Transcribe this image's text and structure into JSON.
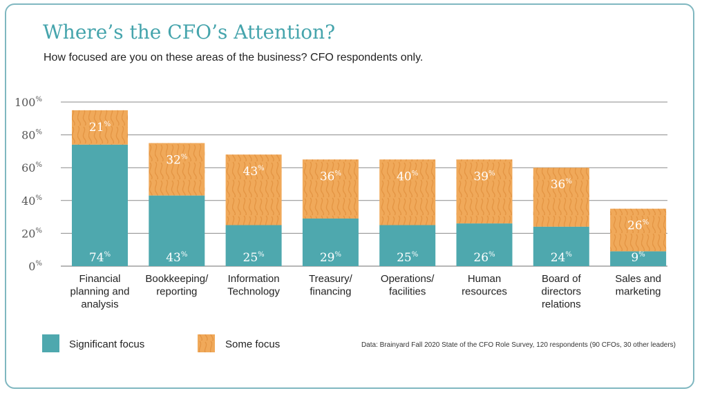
{
  "header": {
    "title": "Where’s the CFO’s Attention?",
    "subtitle": "How focused are you on these areas of the business? CFO respondents only."
  },
  "chart_data": {
    "type": "bar",
    "stacked": true,
    "categories": [
      [
        "Financial",
        "planning and",
        "analysis"
      ],
      [
        "Bookkeeping/",
        "reporting"
      ],
      [
        "Information",
        "Technology"
      ],
      [
        "Treasury/",
        "financing"
      ],
      [
        "Operations/",
        "facilities"
      ],
      [
        "Human",
        "resources"
      ],
      [
        "Board of",
        "directors",
        "relations"
      ],
      [
        "Sales and",
        "marketing"
      ]
    ],
    "series": [
      {
        "name": "Significant focus",
        "color": "#4ea8ae",
        "values": [
          74,
          43,
          25,
          29,
          25,
          26,
          24,
          9
        ]
      },
      {
        "name": "Some focus",
        "color": "#f0a95a",
        "values": [
          21,
          32,
          43,
          36,
          40,
          39,
          36,
          26
        ]
      }
    ],
    "y_ticks": [
      0,
      20,
      40,
      60,
      80,
      100
    ],
    "ylim": [
      0,
      100
    ],
    "unit": "%",
    "grid": true
  },
  "footer": {
    "source": "Data: Brainyard Fall 2020 State of the CFO Role Survey, 120 respondents (90 CFOs, 30 other leaders)"
  }
}
